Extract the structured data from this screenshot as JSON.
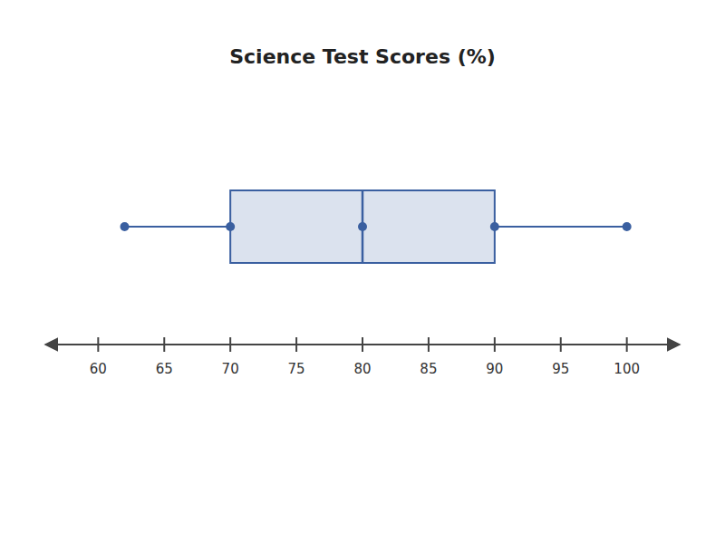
{
  "chart_data": {
    "type": "box",
    "title": "Science Test Scores (%)",
    "min": 62,
    "q1": 70,
    "median": 80,
    "q3": 90,
    "max": 100,
    "xlim": [
      56,
      104
    ],
    "xticks": [
      60,
      65,
      70,
      75,
      80,
      85,
      90,
      95,
      100
    ],
    "color": "#3a5fa0",
    "grid": false
  }
}
